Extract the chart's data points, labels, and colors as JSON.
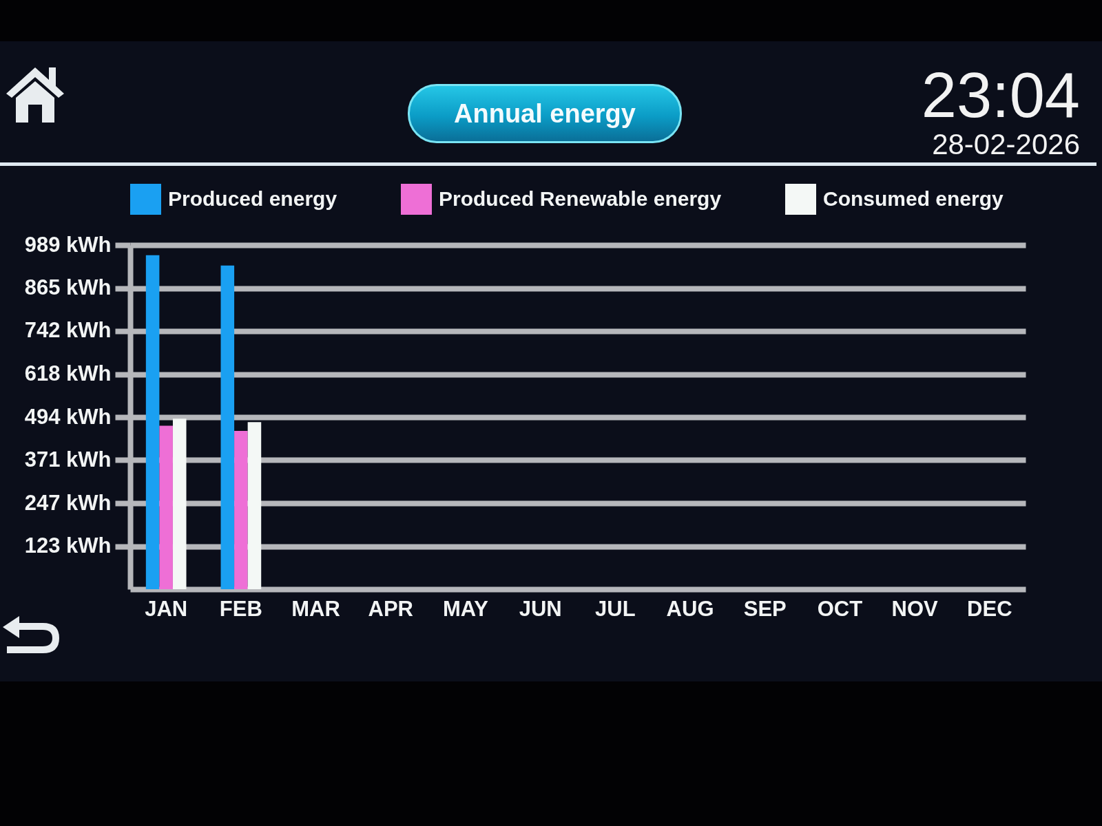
{
  "chart_data": {
    "type": "bar",
    "title": "Annual energy",
    "annotations": [
      "23:04",
      "28-02-2026"
    ],
    "categories": [
      "JAN",
      "FEB",
      "MAR",
      "APR",
      "MAY",
      "JUN",
      "JUL",
      "AUG",
      "SEP",
      "OCT",
      "NOV",
      "DEC"
    ],
    "series": [
      {
        "name": "Produced energy",
        "color": "#1aa0f2",
        "values": [
          960,
          930,
          null,
          null,
          null,
          null,
          null,
          null,
          null,
          null,
          null,
          null
        ]
      },
      {
        "name": "Produced Renewable energy",
        "color": "#ee6fd6",
        "values": [
          470,
          455,
          null,
          null,
          null,
          null,
          null,
          null,
          null,
          null,
          null,
          null
        ]
      },
      {
        "name": "Consumed energy",
        "color": "#f4f8f6",
        "values": [
          490,
          480,
          null,
          null,
          null,
          null,
          null,
          null,
          null,
          null,
          null,
          null
        ]
      }
    ],
    "ylim": [
      0,
      989
    ],
    "yticks": [
      {
        "value": 123,
        "label": "123 kWh"
      },
      {
        "value": 247,
        "label": "247 kWh"
      },
      {
        "value": 371,
        "label": "371 kWh"
      },
      {
        "value": 494,
        "label": "494 kWh"
      },
      {
        "value": 618,
        "label": "618 kWh"
      },
      {
        "value": 742,
        "label": "742 kWh"
      },
      {
        "value": 865,
        "label": "865 kWh"
      },
      {
        "value": 989,
        "label": "989 kWh"
      }
    ],
    "grid": "y",
    "legend": "top"
  }
}
